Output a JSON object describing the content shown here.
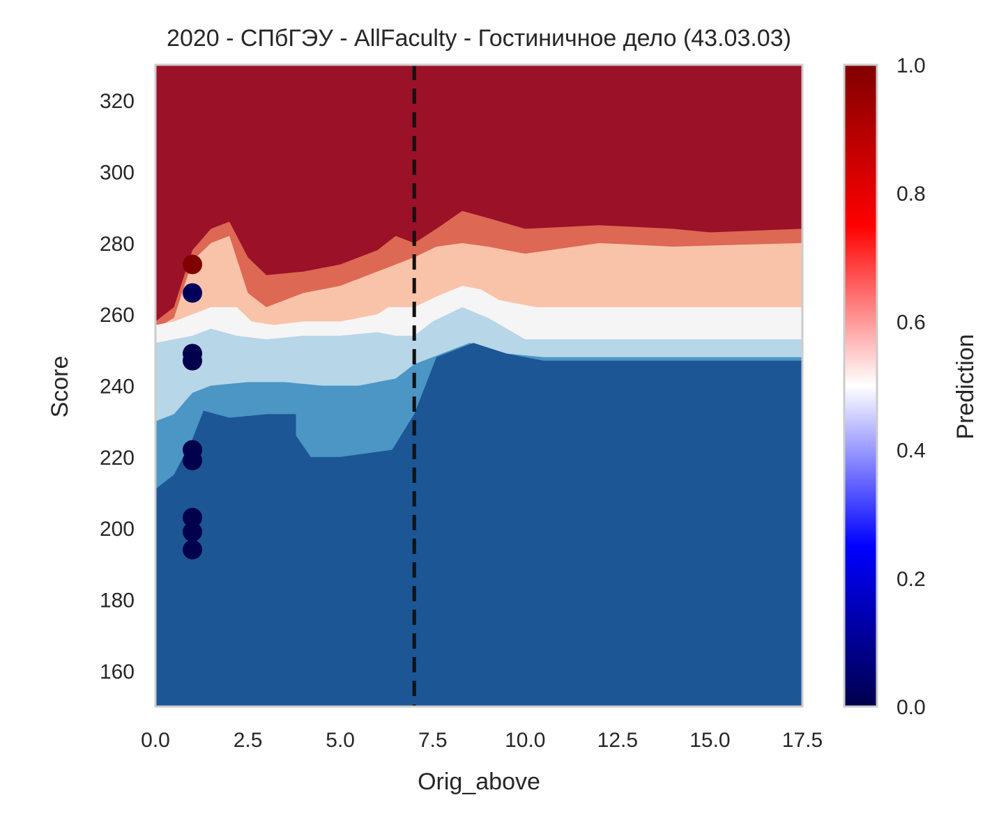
{
  "chart_data": {
    "type": "heatmap",
    "title": "2020 - СПбГЭУ - AllFaculty - Гостиничное дело (43.03.03)",
    "xlabel": "Orig_above",
    "ylabel": "Score",
    "xlim": [
      0,
      17.5
    ],
    "ylim": [
      150,
      330
    ],
    "x_ticks": [
      "0.0",
      "2.5",
      "5.0",
      "7.5",
      "10.0",
      "12.5",
      "15.0",
      "17.5"
    ],
    "y_ticks": [
      "160",
      "180",
      "200",
      "220",
      "240",
      "260",
      "280",
      "300",
      "320"
    ],
    "grid": false,
    "reference_line": {
      "x": 7.0,
      "style": "dashed",
      "color": "#111111"
    },
    "colorbar": {
      "label": "Prediction",
      "range": [
        0.0,
        1.0
      ],
      "ticks": [
        "0.0",
        "0.2",
        "0.4",
        "0.6",
        "0.8",
        "1.0"
      ],
      "colormap": "seismic"
    },
    "contour_levels": [
      {
        "range": "0.0–0.17",
        "color": "#1c5695"
      },
      {
        "range": "0.17–0.33",
        "color": "#4b96c4"
      },
      {
        "range": "0.33–0.5",
        "color": "#b7d6e8"
      },
      {
        "range": "0.5–0.67",
        "color": "#f5f5f5"
      },
      {
        "range": "0.67–0.83",
        "color": "#f9c3aa"
      },
      {
        "range": "0.83–0.92",
        "color": "#dd6853"
      },
      {
        "range": "0.92–1.0",
        "color": "#9b1128"
      }
    ],
    "points": [
      {
        "x": 1,
        "y": 274,
        "prediction": 1.0
      },
      {
        "x": 1,
        "y": 266,
        "prediction": 0.02
      },
      {
        "x": 1,
        "y": 249,
        "prediction": 0.0
      },
      {
        "x": 1,
        "y": 247,
        "prediction": 0.0
      },
      {
        "x": 1,
        "y": 222,
        "prediction": 0.0
      },
      {
        "x": 1,
        "y": 219,
        "prediction": 0.0
      },
      {
        "x": 1,
        "y": 203,
        "prediction": 0.0
      },
      {
        "x": 1,
        "y": 199,
        "prediction": 0.0
      },
      {
        "x": 1,
        "y": 194,
        "prediction": 0.0
      }
    ]
  }
}
